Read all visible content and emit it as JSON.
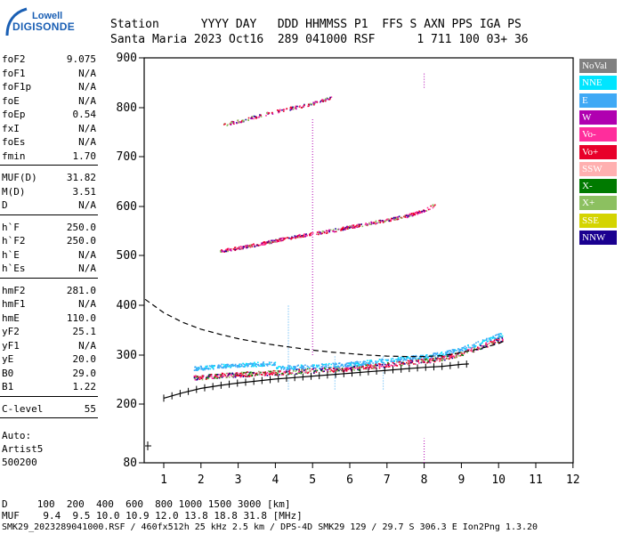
{
  "logo": {
    "top": "Lowell",
    "main": "DIGISONDE"
  },
  "header": {
    "row1": "Station      YYYY DAY   DDD HHMMSS P1  FFS S AXN PPS IGA PS",
    "row2": "Santa Maria 2023 Oct16  289 041000 RSF      1 711 100 03+ 36"
  },
  "params_group1": [
    {
      "k": "foF2",
      "v": "9.075"
    },
    {
      "k": "foF1",
      "v": "N/A"
    },
    {
      "k": "foF1p",
      "v": "N/A"
    },
    {
      "k": "foE",
      "v": "N/A"
    },
    {
      "k": "foEp",
      "v": "0.54"
    },
    {
      "k": "fxI",
      "v": "N/A"
    },
    {
      "k": "foEs",
      "v": "N/A"
    },
    {
      "k": "fmin",
      "v": "1.70"
    }
  ],
  "params_group2": [
    {
      "k": "MUF(D)",
      "v": "31.82"
    },
    {
      "k": "M(D)",
      "v": "3.51"
    },
    {
      "k": "D",
      "v": "N/A"
    }
  ],
  "params_group3": [
    {
      "k": "h`F",
      "v": "250.0"
    },
    {
      "k": "h`F2",
      "v": "250.0"
    },
    {
      "k": "h`E",
      "v": "N/A"
    },
    {
      "k": "h`Es",
      "v": "N/A"
    }
  ],
  "params_group4": [
    {
      "k": "hmF2",
      "v": "281.0"
    },
    {
      "k": "hmF1",
      "v": "N/A"
    },
    {
      "k": "hmE",
      "v": "110.0"
    },
    {
      "k": "yF2",
      "v": "25.1"
    },
    {
      "k": "yF1",
      "v": "N/A"
    },
    {
      "k": "yE",
      "v": "20.0"
    },
    {
      "k": "B0",
      "v": "29.0"
    },
    {
      "k": "B1",
      "v": "1.22"
    }
  ],
  "params_group5": [
    {
      "k": "C-level",
      "v": "55"
    }
  ],
  "autoscale": {
    "l1": "Auto:",
    "l2": "Artist5",
    "l3": "500200"
  },
  "legend": [
    {
      "label": "NoVal",
      "color": "#808080"
    },
    {
      "label": "NNE",
      "color": "#00e5ff"
    },
    {
      "label": "E",
      "color": "#3fa9f5"
    },
    {
      "label": "W",
      "color": "#b000b0"
    },
    {
      "label": "Vo-",
      "color": "#ff2d9c"
    },
    {
      "label": "Vo+",
      "color": "#e8002a"
    },
    {
      "label": "SSW",
      "color": "#ffb0b0"
    },
    {
      "label": "X-",
      "color": "#007a00"
    },
    {
      "label": "X+",
      "color": "#8cc060"
    },
    {
      "label": "SSE",
      "color": "#d4d400"
    },
    {
      "label": "NNW",
      "color": "#1a0090"
    }
  ],
  "bottom": {
    "d_row": "D     100  200  400  600  800 1000 1500 3000 [km]",
    "muf_row": "MUF    9.4  9.5 10.0 10.9 12.0 13.8 18.8 31.8 [MHz]",
    "footer": "SMK29_2023289041000.RSF / 460fx512h 25 kHz 2.5 km / DPS-4D SMK29 129 / 29.7 S 306.3 E Ion2Png 1.3.20"
  },
  "chart_data": {
    "type": "scatter",
    "xlabel": "",
    "ylabel": "",
    "xlim": [
      0.5,
      12
    ],
    "ylim": [
      80,
      900
    ],
    "x_ticks": [
      1,
      2,
      3,
      4,
      5,
      6,
      7,
      8,
      9,
      10,
      11,
      12
    ],
    "y_ticks": [
      80,
      200,
      300,
      400,
      500,
      600,
      700,
      800,
      900
    ],
    "grid": false,
    "series": [
      {
        "type": "line",
        "style": "dashed",
        "x": [
          0.5,
          1,
          1.5,
          2,
          2.5,
          3,
          3.5,
          4,
          4.5,
          5,
          5.5,
          6,
          6.5,
          7,
          7.5,
          8,
          8.5,
          9,
          9.5,
          10,
          10.2
        ],
        "y": [
          412,
          385,
          366,
          352,
          342,
          333,
          326,
          320,
          315,
          310,
          306,
          303,
          300,
          298,
          297,
          297,
          299,
          305,
          313,
          323,
          330
        ]
      },
      {
        "type": "line",
        "style": "ticked",
        "x": [
          1,
          1.5,
          2,
          2.5,
          3,
          3.5,
          4,
          4.5,
          5,
          5.5,
          6,
          6.5,
          7,
          7.5,
          8,
          8.5,
          9,
          9.2
        ],
        "y": [
          212,
          223,
          232,
          238,
          243,
          247,
          251,
          254,
          257,
          260,
          263,
          266,
          269,
          272,
          275,
          277,
          281,
          282
        ]
      },
      {
        "type": "trace",
        "name": "F2 1st hop",
        "x": [
          1.8,
          2.5,
          3,
          3.5,
          4,
          4.5,
          5,
          5.5,
          6,
          6.5,
          7,
          7.5,
          8,
          8.5,
          9,
          9.5,
          10.1
        ],
        "y": [
          255,
          260,
          262,
          264,
          266,
          268,
          270,
          272,
          274,
          278,
          282,
          286,
          290,
          295,
          305,
          318,
          335
        ]
      },
      {
        "type": "trace",
        "name": "F2 2nd hop",
        "x": [
          2.4,
          3,
          3.5,
          4,
          4.5,
          5,
          5.5,
          6,
          6.5,
          7,
          7.5,
          8,
          8.3
        ],
        "y": [
          507,
          515,
          522,
          530,
          538,
          544,
          550,
          558,
          565,
          572,
          580,
          592,
          604
        ]
      },
      {
        "type": "trace",
        "name": "F2 3rd hop",
        "x": [
          2.6,
          3,
          3.5,
          4,
          4.5,
          5,
          5.5
        ],
        "y": [
          765,
          772,
          782,
          792,
          800,
          808,
          820
        ]
      }
    ]
  }
}
